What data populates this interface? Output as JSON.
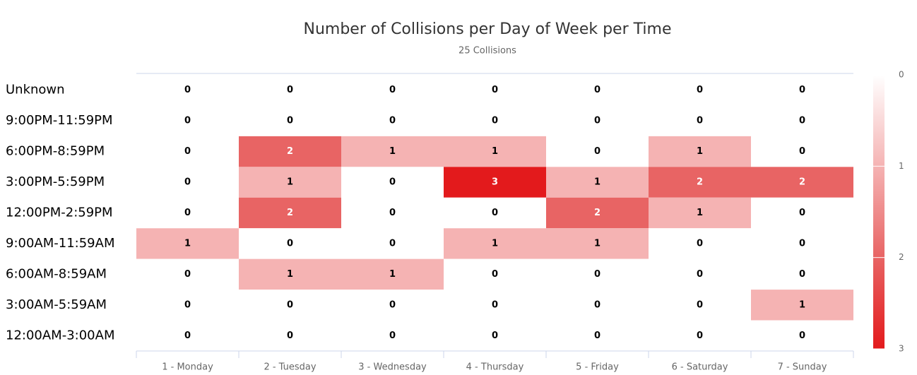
{
  "chart_data": {
    "type": "heatmap",
    "title": "Number of Collisions per Day of Week per Time",
    "subtitle": "25 Collisions",
    "categories": [
      "1 - Monday",
      "2 - Tuesday",
      "3 - Wednesday",
      "4 - Thursday",
      "5 - Friday",
      "6 - Saturday",
      "7 - Sunday"
    ],
    "y_categories": [
      "Unknown",
      "9:00PM-11:59PM",
      "6:00PM-8:59PM",
      "3:00PM-5:59PM",
      "12:00PM-2:59PM",
      "9:00AM-11:59AM",
      "6:00AM-8:59AM",
      "3:00AM-5:59AM",
      "12:00AM-3:00AM"
    ],
    "values": [
      [
        0,
        0,
        0,
        0,
        0,
        0,
        0
      ],
      [
        0,
        0,
        0,
        0,
        0,
        0,
        0
      ],
      [
        0,
        2,
        1,
        1,
        0,
        1,
        0
      ],
      [
        0,
        1,
        0,
        3,
        1,
        2,
        2
      ],
      [
        0,
        2,
        0,
        0,
        2,
        1,
        0
      ],
      [
        1,
        0,
        0,
        1,
        1,
        0,
        0
      ],
      [
        0,
        1,
        1,
        0,
        0,
        0,
        0
      ],
      [
        0,
        0,
        0,
        0,
        0,
        0,
        1
      ],
      [
        0,
        0,
        0,
        0,
        0,
        0,
        0
      ]
    ],
    "color_axis": {
      "lim": [
        0,
        3
      ],
      "ticks": [
        0,
        1,
        2,
        3
      ],
      "colors": [
        "#ffffff",
        "#f5b3b3",
        "#e86464",
        "#e31a1c"
      ]
    }
  }
}
